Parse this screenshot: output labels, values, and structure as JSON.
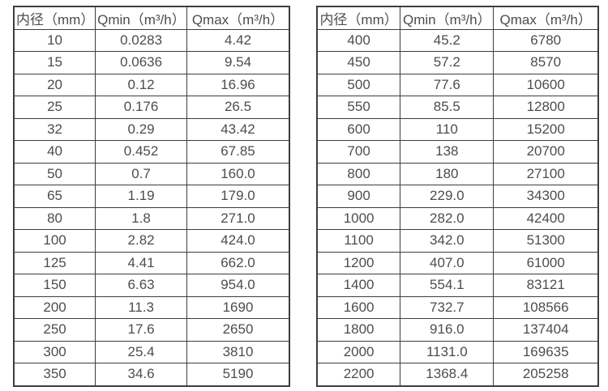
{
  "page": {
    "background_color": "#ffffff",
    "text_color": "#4d4d4d",
    "border_color": "#3d3d3d"
  },
  "tables": [
    {
      "name": "small-diameters",
      "headers": [
        "内径（mm）",
        "Qmin（m³/h）",
        "Qmax（m³/h）"
      ],
      "rows": [
        [
          "10",
          "0.0283",
          "4.42"
        ],
        [
          "15",
          "0.0636",
          "9.54"
        ],
        [
          "20",
          "0.12",
          "16.96"
        ],
        [
          "25",
          "0.176",
          "26.5"
        ],
        [
          "32",
          "0.29",
          "43.42"
        ],
        [
          "40",
          "0.452",
          "67.85"
        ],
        [
          "50",
          "0.7",
          "160.0"
        ],
        [
          "65",
          "1.19",
          "179.0"
        ],
        [
          "80",
          "1.8",
          "271.0"
        ],
        [
          "100",
          "2.82",
          "424.0"
        ],
        [
          "125",
          "4.41",
          "662.0"
        ],
        [
          "150",
          "6.63",
          "954.0"
        ],
        [
          "200",
          "11.3",
          "1690"
        ],
        [
          "250",
          "17.6",
          "2650"
        ],
        [
          "300",
          "25.4",
          "3810"
        ],
        [
          "350",
          "34.6",
          "5190"
        ]
      ]
    },
    {
      "name": "large-diameters",
      "headers": [
        "内径（mm）",
        "Qmin（m³/h）",
        "Qmax（m³/h）"
      ],
      "rows": [
        [
          "400",
          "45.2",
          "6780"
        ],
        [
          "450",
          "57.2",
          "8570"
        ],
        [
          "500",
          "77.6",
          "10600"
        ],
        [
          "550",
          "85.5",
          "12800"
        ],
        [
          "600",
          "110",
          "15200"
        ],
        [
          "700",
          "138",
          "20700"
        ],
        [
          "800",
          "180",
          "27100"
        ],
        [
          "900",
          "229.0",
          "34300"
        ],
        [
          "1000",
          "282.0",
          "42400"
        ],
        [
          "1100",
          "342.0",
          "51300"
        ],
        [
          "1200",
          "407.0",
          "61000"
        ],
        [
          "1400",
          "554.1",
          "83121"
        ],
        [
          "1600",
          "732.7",
          "108566"
        ],
        [
          "1800",
          "916.0",
          "137404"
        ],
        [
          "2000",
          "1131.0",
          "169635"
        ],
        [
          "2200",
          "1368.4",
          "205258"
        ]
      ]
    }
  ]
}
